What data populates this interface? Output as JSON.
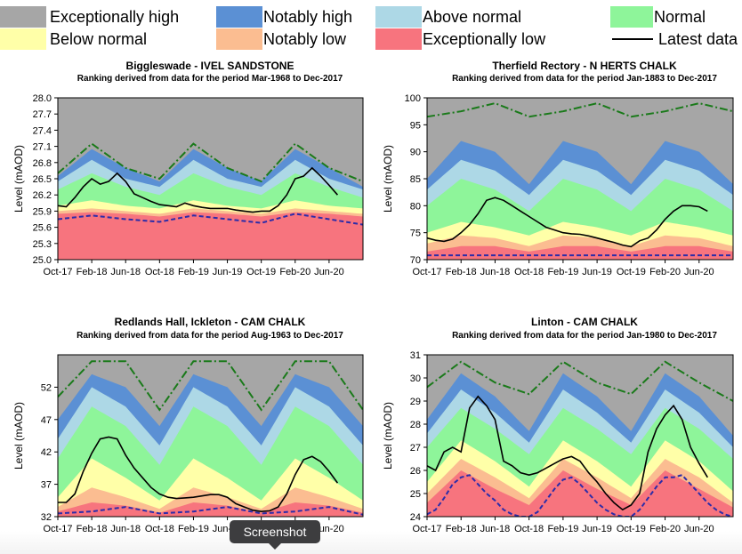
{
  "legend": {
    "exceptionally_high": "Exceptionally high",
    "notably_high": "Notably high",
    "above_normal": "Above normal",
    "normal": "Normal",
    "below_normal": "Below normal",
    "notably_low": "Notably low",
    "exceptionally_low": "Exceptionally low",
    "latest_data": "Latest data"
  },
  "colors": {
    "exceptionally_high": "#a6a6a6",
    "notably_high": "#5b90d4",
    "above_normal": "#add8e6",
    "normal": "#8ef59a",
    "below_normal": "#ffffa8",
    "notably_low": "#fbbd91",
    "exceptionally_low": "#f7747e",
    "latest": "#000000",
    "max_line": "#1a7a1a",
    "min_line": "#2c2ca8"
  },
  "tooltip": {
    "label": "Screenshot"
  },
  "chart_data": [
    {
      "type": "area",
      "title": "Biggleswade - IVEL SANDSTONE",
      "subtitle": "Ranking derived from data for the period Mar-1968 to Dec-2017",
      "ylabel": "Level (mAOD)",
      "ylim": [
        25.0,
        28.0
      ],
      "yticks": [
        25.0,
        25.3,
        25.6,
        25.9,
        26.2,
        26.5,
        26.8,
        27.1,
        27.4,
        27.7,
        28.0
      ],
      "ytick_labels": [
        "25.0",
        "25.3",
        "25.6",
        "25.9",
        "26.2",
        "26.5",
        "26.8",
        "27.1",
        "27.4",
        "27.7",
        "28.0"
      ],
      "x_tick_labels": [
        "Oct-17",
        "Feb-18",
        "Jun-18",
        "Oct-18",
        "Feb-19",
        "Jun-19",
        "Oct-19",
        "Feb-20",
        "Jun-20"
      ],
      "bands": {
        "x_months": [
          0,
          4,
          8,
          12,
          16,
          20,
          24,
          28,
          32,
          36
        ],
        "p95": [
          26.55,
          27.05,
          26.7,
          26.45,
          27.05,
          26.7,
          26.45,
          27.05,
          26.7,
          26.35
        ],
        "p87": [
          26.45,
          26.85,
          26.5,
          26.35,
          26.85,
          26.5,
          26.35,
          26.85,
          26.5,
          26.3
        ],
        "p72": [
          26.3,
          26.6,
          26.35,
          26.2,
          26.6,
          26.35,
          26.2,
          26.6,
          26.35,
          26.15
        ],
        "p28": [
          26.0,
          26.1,
          26.0,
          25.95,
          26.1,
          26.0,
          25.95,
          26.1,
          26.0,
          25.95
        ],
        "p13": [
          25.9,
          25.95,
          25.9,
          25.85,
          25.95,
          25.9,
          25.85,
          25.95,
          25.9,
          25.85
        ],
        "p5": [
          25.85,
          25.88,
          25.85,
          25.8,
          25.88,
          25.85,
          25.8,
          25.88,
          25.85,
          25.8
        ]
      },
      "max": {
        "x": [
          0,
          4,
          8,
          12,
          16,
          20,
          24,
          28,
          32,
          36
        ],
        "y": [
          26.6,
          27.15,
          26.7,
          26.5,
          27.15,
          26.7,
          26.45,
          27.15,
          26.7,
          26.45
        ]
      },
      "min": {
        "x": [
          0,
          4,
          8,
          12,
          16,
          20,
          24,
          28,
          32,
          36
        ],
        "y": [
          25.75,
          25.82,
          25.75,
          25.7,
          25.82,
          25.75,
          25.68,
          25.85,
          25.75,
          25.65
        ]
      },
      "latest": {
        "x": [
          0,
          1,
          2,
          3,
          4,
          5,
          6,
          7,
          8,
          9,
          10,
          11,
          12,
          13,
          14,
          15,
          16,
          17,
          18,
          19,
          20,
          21,
          22,
          23,
          24,
          25,
          26,
          27,
          28,
          29,
          30,
          31,
          32,
          33
        ],
        "y": [
          26.0,
          25.98,
          26.15,
          26.35,
          26.5,
          26.4,
          26.45,
          26.6,
          26.45,
          26.22,
          26.15,
          26.08,
          26.02,
          26.0,
          25.98,
          26.05,
          26.0,
          25.97,
          25.95,
          25.95,
          25.95,
          25.92,
          25.9,
          25.88,
          25.9,
          25.9,
          26.0,
          26.2,
          26.5,
          26.55,
          26.7,
          26.55,
          26.38,
          26.2
        ]
      }
    },
    {
      "type": "area",
      "title": "Therfield Rectory - N HERTS CHALK",
      "subtitle": "Ranking derived from data for the period Jan-1883 to Dec-2017",
      "ylabel": "Level (mAOD)",
      "ylim": [
        70,
        100
      ],
      "yticks": [
        70,
        75,
        80,
        85,
        90,
        95,
        100
      ],
      "ytick_labels": [
        "70",
        "75",
        "80",
        "85",
        "90",
        "95",
        "100"
      ],
      "x_tick_labels": [
        "Oct-17",
        "Feb-18",
        "Jun-18",
        "Oct-18",
        "Feb-19",
        "Jun-19",
        "Oct-19",
        "Feb-20",
        "Jun-20"
      ],
      "bands": {
        "x_months": [
          0,
          4,
          8,
          12,
          16,
          20,
          24,
          28,
          32,
          36
        ],
        "p95": [
          85,
          92,
          90,
          84,
          92,
          90,
          84,
          92,
          90,
          84
        ],
        "p87": [
          83,
          88.5,
          86.5,
          82,
          88.5,
          86.5,
          82,
          88.5,
          86.5,
          82
        ],
        "p72": [
          80,
          85,
          83,
          79,
          85,
          83,
          79,
          85,
          83,
          79
        ],
        "p28": [
          75,
          77,
          76,
          74.5,
          77,
          76,
          74.5,
          77,
          76,
          74.5
        ],
        "p13": [
          73,
          74.5,
          74,
          72.5,
          74.5,
          74,
          72.5,
          74.5,
          74,
          72.5
        ],
        "p5": [
          71.5,
          72.5,
          72.5,
          71.5,
          72.5,
          72.5,
          71.5,
          72.5,
          72.5,
          71.5
        ]
      },
      "max": {
        "x": [
          0,
          4,
          8,
          12,
          16,
          20,
          24,
          28,
          32,
          36
        ],
        "y": [
          96.5,
          97.5,
          99,
          96.5,
          97.5,
          99,
          96.5,
          97.5,
          99,
          97.5
        ]
      },
      "min": {
        "x": [
          0,
          36
        ],
        "y": [
          70.8,
          70.8
        ]
      },
      "latest": {
        "x": [
          0,
          1,
          2,
          3,
          4,
          5,
          6,
          7,
          8,
          9,
          10,
          11,
          12,
          13,
          14,
          15,
          16,
          17,
          18,
          19,
          20,
          21,
          22,
          23,
          24,
          25,
          26,
          27,
          28,
          29,
          30,
          31,
          32,
          33
        ],
        "y": [
          74,
          73.6,
          73.4,
          73.8,
          75,
          76.5,
          78.5,
          81,
          81.5,
          81,
          80,
          79,
          78,
          77,
          76,
          75.5,
          75,
          74.8,
          74.7,
          74.4,
          74,
          73.6,
          73.2,
          72.7,
          72.4,
          73.5,
          74,
          75.5,
          77.5,
          79,
          80,
          80,
          79.8,
          79
        ]
      }
    },
    {
      "type": "area",
      "title": "Redlands Hall, Ickleton - CAM CHALK",
      "subtitle": "Ranking derived from data for the period Aug-1963 to Dec-2017",
      "ylabel": "Level (mAOD)",
      "ylim": [
        32,
        57
      ],
      "yticks": [
        32,
        37,
        42,
        47,
        52
      ],
      "ytick_labels": [
        "32",
        "37",
        "42",
        "47",
        "52"
      ],
      "x_tick_labels": [
        "Oct-17",
        "Feb-18",
        "Jun-18",
        "Oct-18",
        "Feb-19",
        "Jun-19",
        "Oct-19",
        "Feb-20",
        "Jun-20"
      ],
      "bands": {
        "x_months": [
          0,
          4,
          8,
          12,
          16,
          20,
          24,
          28,
          32,
          36
        ],
        "p95": [
          47,
          54,
          52,
          46,
          54,
          52,
          46,
          54,
          52,
          46
        ],
        "p87": [
          44,
          52,
          49,
          43,
          52,
          49,
          43,
          52,
          49,
          43
        ],
        "p72": [
          41,
          49,
          46,
          40,
          49,
          46,
          40,
          49,
          46,
          40
        ],
        "p28": [
          35,
          41,
          38,
          34.5,
          41,
          38,
          34.5,
          41,
          38,
          34.5
        ],
        "p13": [
          33.5,
          36.5,
          35,
          33.2,
          36.5,
          35,
          33.2,
          36.5,
          35,
          33.2
        ],
        "p5": [
          32.8,
          34.2,
          33.7,
          32.6,
          34.2,
          33.7,
          32.6,
          34.2,
          33.7,
          32.6
        ]
      },
      "max": {
        "x": [
          0,
          4,
          8,
          12,
          16,
          20,
          24,
          28,
          32,
          36
        ],
        "y": [
          50.5,
          56,
          56,
          48.5,
          56,
          56,
          48.5,
          56,
          56,
          48.5
        ]
      },
      "min": {
        "x": [
          0,
          4,
          8,
          12,
          16,
          20,
          24,
          28,
          32,
          36
        ],
        "y": [
          32.5,
          32.8,
          33.5,
          32.5,
          32.8,
          33.5,
          32.5,
          32.8,
          33.5,
          32.3
        ]
      },
      "latest": {
        "x": [
          0,
          1,
          2,
          3,
          4,
          5,
          6,
          7,
          8,
          9,
          10,
          11,
          12,
          13,
          14,
          15,
          16,
          17,
          18,
          19,
          20,
          21,
          22,
          23,
          24,
          25,
          26,
          27,
          28,
          29,
          30,
          31,
          32,
          33
        ],
        "y": [
          34.2,
          34.2,
          35.5,
          39,
          41.8,
          44,
          44.3,
          44,
          41.5,
          39.5,
          38,
          36.5,
          35.5,
          35,
          34.8,
          34.9,
          35,
          35.2,
          35.4,
          35.4,
          35,
          34,
          33.5,
          33,
          32.8,
          32.9,
          33.5,
          35.5,
          38.5,
          40.8,
          41.3,
          40.5,
          39,
          37.2
        ]
      }
    },
    {
      "type": "area",
      "title": "Linton - CAM CHALK",
      "subtitle": "Ranking derived from data for the period Jan-1980 to Dec-2017",
      "ylabel": "Level (mAOD)",
      "ylim": [
        24,
        31
      ],
      "yticks": [
        24,
        25,
        26,
        27,
        28,
        29,
        30,
        31
      ],
      "ytick_labels": [
        "24",
        "25",
        "26",
        "27",
        "28",
        "29",
        "30",
        "31"
      ],
      "x_tick_labels": [
        "Oct-17",
        "Feb-18",
        "Jun-18",
        "Oct-18",
        "Feb-19",
        "Jun-19",
        "Oct-19",
        "Feb-20",
        "Jun-20"
      ],
      "bands": {
        "x_months": [
          0,
          4,
          8,
          12,
          16,
          20,
          24,
          28,
          32,
          36
        ],
        "p95": [
          28.2,
          30.2,
          29.2,
          27.7,
          30.2,
          29.2,
          27.7,
          30.2,
          29.2,
          27.5
        ],
        "p87": [
          27.6,
          29.5,
          28.5,
          27.2,
          29.5,
          28.5,
          27.2,
          29.5,
          28.5,
          27.0
        ],
        "p72": [
          27.0,
          28.7,
          27.8,
          26.7,
          28.7,
          27.8,
          26.7,
          28.7,
          27.8,
          26.5
        ],
        "p28": [
          25.5,
          27.3,
          26.4,
          25.3,
          27.3,
          26.4,
          25.3,
          27.3,
          26.4,
          25.1
        ],
        "p13": [
          25.0,
          26.5,
          25.7,
          24.8,
          26.5,
          25.7,
          24.8,
          26.5,
          25.7,
          24.6
        ],
        "p5": [
          24.6,
          26.0,
          25.2,
          24.5,
          26.0,
          25.2,
          24.5,
          26.0,
          25.2,
          24.4
        ]
      },
      "max": {
        "x": [
          0,
          4,
          8,
          12,
          16,
          20,
          24,
          28,
          32,
          36
        ],
        "y": [
          29.6,
          30.7,
          29.8,
          29.3,
          30.7,
          29.8,
          29.3,
          30.7,
          29.8,
          29.0
        ]
      },
      "min": {
        "x": [
          0,
          1,
          2,
          3,
          4,
          5,
          6,
          7,
          8,
          9,
          10,
          11,
          12,
          13,
          14,
          15,
          16,
          17,
          18,
          19,
          20,
          21,
          22,
          23,
          24,
          25,
          26,
          27,
          28,
          29,
          30,
          31,
          32,
          33,
          34,
          35,
          36
        ],
        "y": [
          24.1,
          24.3,
          24.8,
          25.4,
          25.7,
          25.8,
          25.4,
          25.0,
          24.7,
          24.3,
          24.1,
          24.0,
          24.0,
          24.2,
          24.7,
          25.2,
          25.6,
          25.7,
          25.4,
          25.0,
          24.6,
          24.3,
          24.1,
          24.0,
          24.0,
          24.3,
          24.8,
          25.3,
          25.7,
          25.7,
          25.8,
          25.4,
          25.0,
          24.6,
          24.3,
          24.1,
          24.0
        ]
      },
      "latest": {
        "x": [
          0,
          1,
          2,
          3,
          4,
          5,
          6,
          7,
          8,
          9,
          10,
          11,
          12,
          13,
          14,
          15,
          16,
          17,
          18,
          19,
          20,
          21,
          22,
          23,
          24,
          25,
          26,
          27,
          28,
          29,
          30,
          31,
          32,
          33
        ],
        "y": [
          26.2,
          26.0,
          26.8,
          27.0,
          26.8,
          28.7,
          29.2,
          28.8,
          28.2,
          26.4,
          26.2,
          25.9,
          25.8,
          25.9,
          26.1,
          26.3,
          26.5,
          26.6,
          26.4,
          25.9,
          25.5,
          25.0,
          24.6,
          24.3,
          24.5,
          25.0,
          26.8,
          27.8,
          28.4,
          28.8,
          28.2,
          27.0,
          26.3,
          25.7
        ]
      }
    }
  ]
}
